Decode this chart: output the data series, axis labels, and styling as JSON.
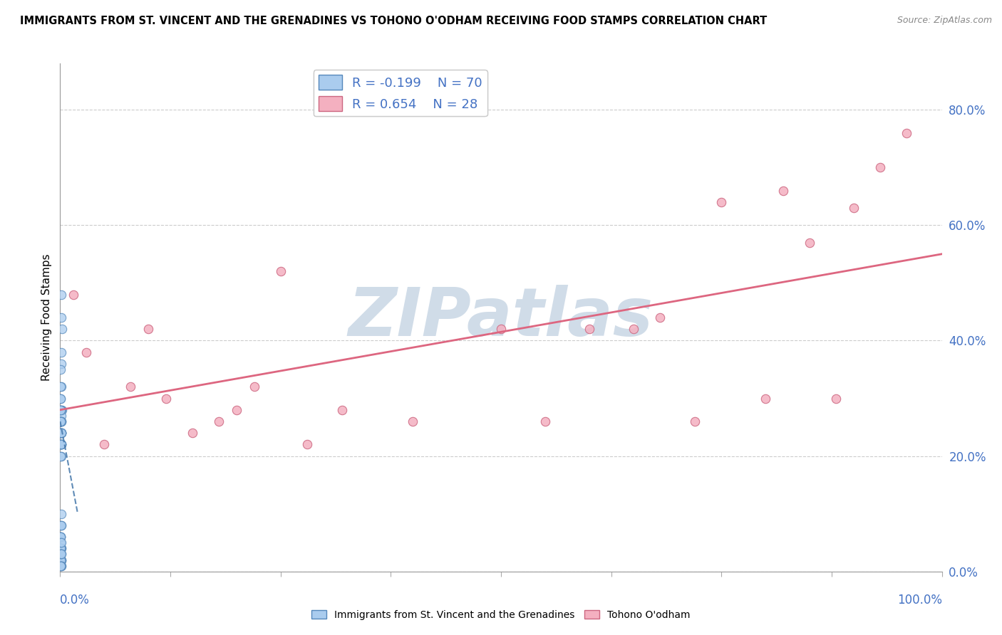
{
  "title": "IMMIGRANTS FROM ST. VINCENT AND THE GRENADINES VS TOHONO O'ODHAM RECEIVING FOOD STAMPS CORRELATION CHART",
  "source": "Source: ZipAtlas.com",
  "ylabel": "Receiving Food Stamps",
  "xlim": [
    0.0,
    100.0
  ],
  "ylim": [
    0.0,
    88.0
  ],
  "yticks": [
    0.0,
    20.0,
    40.0,
    60.0,
    80.0
  ],
  "ytick_labels": [
    "0.0%",
    "20.0%",
    "40.0%",
    "60.0%",
    "80.0%"
  ],
  "xticks": [
    0.0,
    12.5,
    25.0,
    37.5,
    50.0,
    62.5,
    75.0,
    87.5,
    100.0
  ],
  "blue_R": -0.199,
  "blue_N": 70,
  "pink_R": 0.654,
  "pink_N": 28,
  "blue_color": "#aaccee",
  "pink_color": "#f4b0c0",
  "blue_edge_color": "#5588bb",
  "pink_edge_color": "#cc6680",
  "pink_line_color": "#dd6680",
  "blue_line_color": "#4477aa",
  "watermark_text": "ZIPatlas",
  "watermark_color": "#d0dce8",
  "legend_label_blue": "Immigrants from St. Vincent and the Grenadines",
  "legend_label_pink": "Tohono O'odham",
  "blue_scatter_x": [
    0.1,
    0.15,
    0.2,
    0.1,
    0.05,
    0.12,
    0.08,
    0.18,
    0.1,
    0.06,
    0.05,
    0.12,
    0.1,
    0.08,
    0.15,
    0.1,
    0.05,
    0.08,
    0.1,
    0.12,
    0.1,
    0.08,
    0.05,
    0.1,
    0.15,
    0.08,
    0.05,
    0.1,
    0.12,
    0.08,
    0.1,
    0.05,
    0.08,
    0.12,
    0.1,
    0.15,
    0.08,
    0.05,
    0.1,
    0.12,
    0.1,
    0.08,
    0.05,
    0.1,
    0.08,
    0.05,
    0.12,
    0.1,
    0.08,
    0.05,
    0.1,
    0.08,
    0.05,
    0.12,
    0.1,
    0.08,
    0.05,
    0.1,
    0.08,
    0.05,
    0.12,
    0.1,
    0.08,
    0.05,
    0.1,
    0.08,
    0.05,
    0.12,
    0.1,
    0.08
  ],
  "blue_scatter_y": [
    48.0,
    36.0,
    42.0,
    38.0,
    30.0,
    32.0,
    35.0,
    28.0,
    44.0,
    26.0,
    28.0,
    24.0,
    22.0,
    24.0,
    20.0,
    28.0,
    32.0,
    30.0,
    26.0,
    24.0,
    27.0,
    22.0,
    26.0,
    24.0,
    22.0,
    26.0,
    28.0,
    24.0,
    22.0,
    20.0,
    26.0,
    28.0,
    24.0,
    22.0,
    26.0,
    24.0,
    22.0,
    26.0,
    24.0,
    22.0,
    8.0,
    6.0,
    4.0,
    10.0,
    8.0,
    6.0,
    4.0,
    8.0,
    6.0,
    4.0,
    2.0,
    4.0,
    6.0,
    2.0,
    4.0,
    2.0,
    4.0,
    2.0,
    4.0,
    2.0,
    3.0,
    1.0,
    5.0,
    3.0,
    1.0,
    3.0,
    1.0,
    5.0,
    3.0,
    1.0
  ],
  "pink_scatter_x": [
    1.5,
    3.0,
    5.0,
    8.0,
    10.0,
    12.0,
    15.0,
    18.0,
    20.0,
    22.0,
    25.0,
    28.0,
    32.0,
    40.0,
    50.0,
    55.0,
    60.0,
    65.0,
    68.0,
    72.0,
    75.0,
    80.0,
    82.0,
    85.0,
    88.0,
    90.0,
    93.0,
    96.0
  ],
  "pink_scatter_y": [
    48.0,
    38.0,
    22.0,
    32.0,
    42.0,
    30.0,
    24.0,
    26.0,
    28.0,
    32.0,
    52.0,
    22.0,
    28.0,
    26.0,
    42.0,
    26.0,
    42.0,
    42.0,
    44.0,
    26.0,
    64.0,
    30.0,
    66.0,
    57.0,
    30.0,
    63.0,
    70.0,
    76.0
  ],
  "pink_reg_start_y": 28.0,
  "pink_reg_end_y": 55.0,
  "blue_reg_start_y": 26.0,
  "blue_reg_end_y": 10.0,
  "blue_reg_end_x": 2.0
}
